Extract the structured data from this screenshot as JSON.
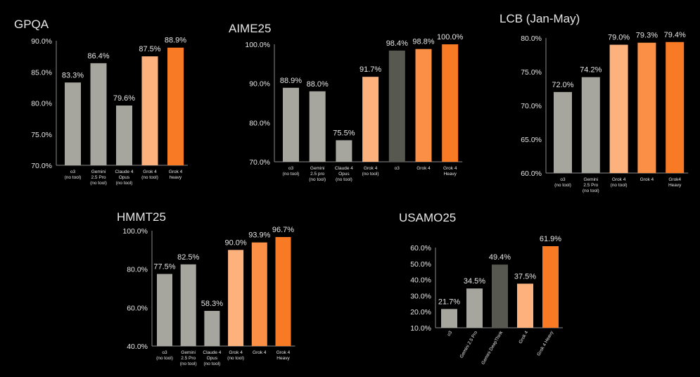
{
  "colors": {
    "background": "#000000",
    "gray": "#a6a69e",
    "dark_gray": "#57584f",
    "light_orange": "#fdb27e",
    "mid_orange": "#fb8f45",
    "orange": "#f97a25",
    "text": "#e6e6e6",
    "axis": "#8a8a8a"
  },
  "chart_data": [
    {
      "type": "bar",
      "title": "GPQA",
      "ylim": [
        70,
        90
      ],
      "yticks": [
        "70.0%",
        "75.0%",
        "80.0%",
        "85.0%",
        "90.0%"
      ],
      "grid": false,
      "categories": [
        [
          "o3",
          "(no tool)"
        ],
        [
          "Gemini",
          "2.5 Pro",
          "(no tool)"
        ],
        [
          "Claude 4",
          "Opus",
          "(no tool)"
        ],
        [
          "Grok 4",
          "(no tool)"
        ],
        [
          "Grok 4",
          "heavy"
        ]
      ],
      "values": [
        83.3,
        86.4,
        79.6,
        87.5,
        88.9
      ],
      "labels": [
        "83.3%",
        "86.4%",
        "79.6%",
        "87.5%",
        "88.9%"
      ],
      "bar_colors": [
        "gray",
        "gray",
        "gray",
        "light_orange",
        "orange"
      ]
    },
    {
      "type": "bar",
      "title": "AIME25",
      "ylim": [
        70,
        100
      ],
      "yticks": [
        "70.0%",
        "80.0%",
        "90.0%",
        "100.0%"
      ],
      "grid": false,
      "categories": [
        [
          "o3",
          "(no tool)"
        ],
        [
          "Gemini",
          "2.5 pro",
          "(no tool)"
        ],
        [
          "Claude 4",
          "Opus",
          "(no tool)"
        ],
        [
          "Grok 4",
          "(no tool)"
        ],
        [
          "o3"
        ],
        [
          "Grok 4"
        ],
        [
          "Grok 4",
          "Heavy"
        ]
      ],
      "values": [
        88.9,
        88.0,
        75.5,
        91.7,
        98.4,
        98.8,
        100.0
      ],
      "labels": [
        "88.9%",
        "88.0%",
        "75.5%",
        "91.7%",
        "98.4%",
        "98.8%",
        "100.0%"
      ],
      "bar_colors": [
        "gray",
        "gray",
        "gray",
        "light_orange",
        "dark_gray",
        "mid_orange",
        "orange"
      ]
    },
    {
      "type": "bar",
      "title": "LCB (Jan-May)",
      "ylim": [
        60,
        80
      ],
      "yticks": [
        "60.0%",
        "65.0%",
        "70.0%",
        "75.0%",
        "80.0%"
      ],
      "grid": false,
      "categories": [
        [
          "o3",
          "(no tool)"
        ],
        [
          "Gemini",
          "2.5 Pro",
          "(no tool)"
        ],
        [
          "Grok 4",
          "(no tool)"
        ],
        [
          "Grok 4"
        ],
        [
          "Grok4",
          "Heavy"
        ]
      ],
      "values": [
        72.0,
        74.2,
        79.0,
        79.3,
        79.4
      ],
      "labels": [
        "72.0%",
        "74.2%",
        "79.0%",
        "79.3%",
        "79.4%"
      ],
      "bar_colors": [
        "gray",
        "gray",
        "light_orange",
        "mid_orange",
        "orange"
      ]
    },
    {
      "type": "bar",
      "title": "HMMT25",
      "ylim": [
        40,
        100
      ],
      "yticks": [
        "40.0%",
        "60.0%",
        "80.0%",
        "100.0%"
      ],
      "grid": false,
      "categories": [
        [
          "o3",
          "(no tool)"
        ],
        [
          "Gemini",
          "2.5 Pro",
          "(no tool)"
        ],
        [
          "Claude 4",
          "Opus",
          "(no tool)"
        ],
        [
          "Grok 4",
          "(no tool)"
        ],
        [
          "Grok 4"
        ],
        [
          "Grok 4",
          "Heavy"
        ]
      ],
      "values": [
        77.5,
        82.5,
        58.3,
        90.0,
        93.9,
        96.7
      ],
      "labels": [
        "77.5%",
        "82.5%",
        "58.3%",
        "90.0%",
        "93.9%",
        "96.7%"
      ],
      "bar_colors": [
        "gray",
        "gray",
        "gray",
        "light_orange",
        "mid_orange",
        "orange"
      ]
    },
    {
      "type": "bar",
      "title": "USAMO25",
      "ylim": [
        10,
        60
      ],
      "yticks": [
        "10.0%",
        "20.0%",
        "30.0%",
        "40.0%",
        "50.0%",
        "60.0%"
      ],
      "grid": false,
      "rotated_labels": true,
      "categories": [
        [
          "o3"
        ],
        [
          "Gemini 2.5 Pro"
        ],
        [
          "Gemini DeepThink"
        ],
        [
          "Grok 4"
        ],
        [
          "Grok 4 Heavy"
        ]
      ],
      "values": [
        21.7,
        34.5,
        49.4,
        37.5,
        61.9
      ],
      "labels": [
        "21.7%",
        "34.5%",
        "49.4%",
        "37.5%",
        "61.9%"
      ],
      "bar_colors": [
        "gray",
        "gray",
        "dark_gray",
        "light_orange",
        "orange"
      ]
    }
  ]
}
